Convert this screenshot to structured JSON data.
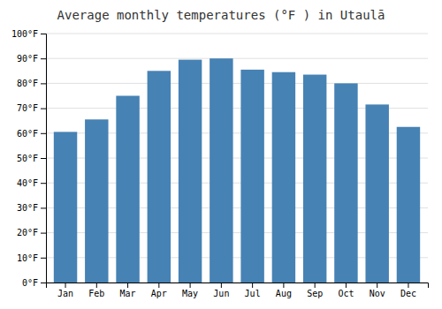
{
  "chart_data": {
    "type": "bar",
    "title": "Average monthly temperatures (°F ) in Utaulā",
    "categories": [
      "Jan",
      "Feb",
      "Mar",
      "Apr",
      "May",
      "Jun",
      "Jul",
      "Aug",
      "Sep",
      "Oct",
      "Nov",
      "Dec"
    ],
    "values": [
      60.5,
      65.5,
      75,
      85,
      89.5,
      90,
      85.5,
      84.5,
      83.5,
      80,
      71.5,
      62.5
    ],
    "ylim": [
      0,
      100
    ],
    "yticks": [
      {
        "value": 0,
        "label": "0°F"
      },
      {
        "value": 10,
        "label": "10°F"
      },
      {
        "value": 20,
        "label": "20°F"
      },
      {
        "value": 30,
        "label": "30°F"
      },
      {
        "value": 40,
        "label": "40°F"
      },
      {
        "value": 50,
        "label": "50°F"
      },
      {
        "value": 60,
        "label": "60°F"
      },
      {
        "value": 70,
        "label": "70°F"
      },
      {
        "value": 80,
        "label": "80°F"
      },
      {
        "value": 90,
        "label": "90°F"
      },
      {
        "value": 100,
        "label": "100°F"
      }
    ],
    "grid": true
  }
}
